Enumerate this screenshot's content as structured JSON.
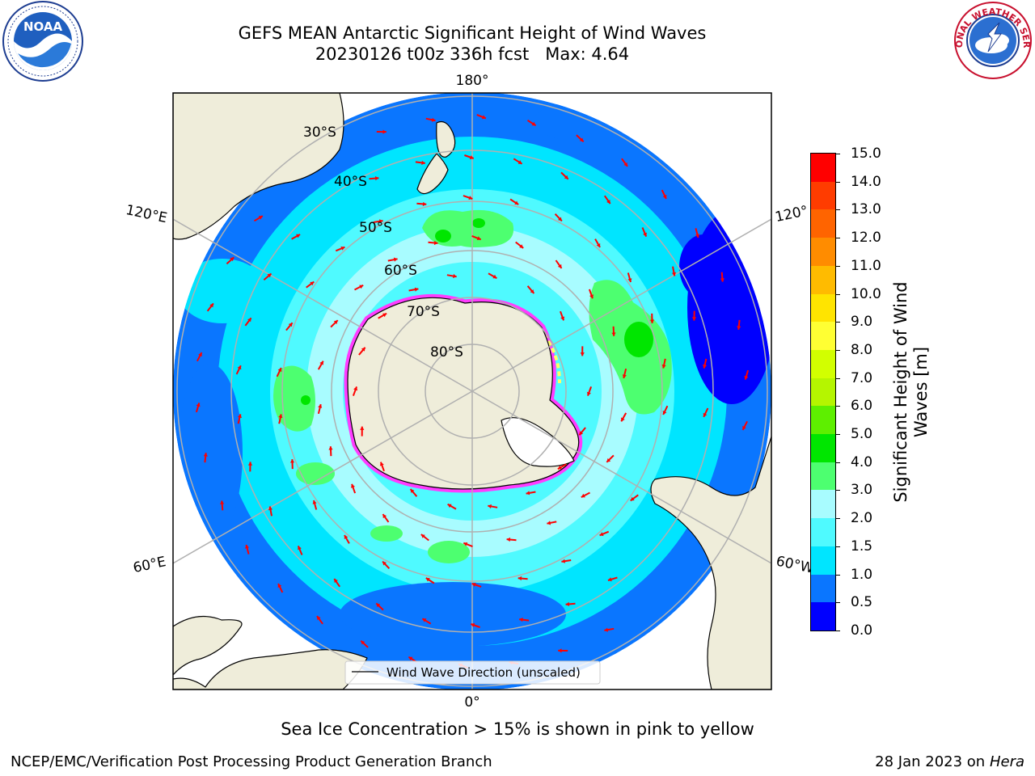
{
  "header": {
    "title_line1": "GEFS MEAN Antarctic Significant Height of Wind Waves",
    "title_line2": "20230126 t00z 336h fcst   Max: 4.64"
  },
  "logos": {
    "left": "noaa-logo",
    "left_text": "NOAA",
    "right": "nws-logo",
    "right_text": "NATIONAL WEATHER SERVICE"
  },
  "map": {
    "projection": "south-polar-stereographic",
    "longitude_labels": {
      "top": "180°",
      "upper_left": "120°E",
      "upper_right": "120°",
      "lower_left": "60°E",
      "lower_right": "60°W",
      "bottom": "0°"
    },
    "latitude_labels": [
      "30°S",
      "40°S",
      "50°S",
      "60°S",
      "70°S",
      "80°S"
    ],
    "legend": "Wind Wave Direction (unscaled)",
    "colors": {
      "land": "#efedda",
      "arrow": "#ff0000",
      "grid": "#b0b0b0",
      "ice_low": "#ff3cff",
      "ice_high": "#ffff66"
    }
  },
  "colorbar": {
    "label": "Significant Height of Wind Waves [m]",
    "ticks": [
      "0.0",
      "0.5",
      "1.0",
      "1.5",
      "2.0",
      "3.0",
      "4.0",
      "5.0",
      "6.0",
      "7.0",
      "8.0",
      "9.0",
      "10.0",
      "11.0",
      "12.0",
      "13.0",
      "14.0",
      "15.0"
    ],
    "colors": [
      "#0000ff",
      "#0a76ff",
      "#00e5ff",
      "#4ffaff",
      "#a8fcff",
      "#4dff70",
      "#00e600",
      "#5eef00",
      "#b5f500",
      "#d2ff00",
      "#ffff33",
      "#ffe400",
      "#ffbb00",
      "#ff8c00",
      "#ff6400",
      "#ff3c00",
      "#ff0000"
    ]
  },
  "footer": {
    "note": "Sea Ice Concentration > 15% is shown in pink to yellow",
    "left": "NCEP/EMC/Verification Post Processing Product Generation Branch",
    "right_prefix": "28 Jan 2023 on ",
    "right_host": "Hera"
  }
}
